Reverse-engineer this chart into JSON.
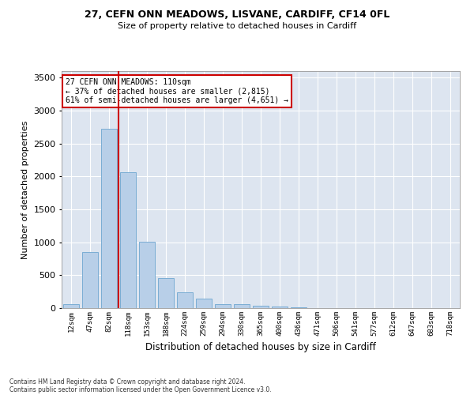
{
  "title1": "27, CEFN ONN MEADOWS, LISVANE, CARDIFF, CF14 0FL",
  "title2": "Size of property relative to detached houses in Cardiff",
  "xlabel": "Distribution of detached houses by size in Cardiff",
  "ylabel": "Number of detached properties",
  "categories": [
    "12sqm",
    "47sqm",
    "82sqm",
    "118sqm",
    "153sqm",
    "188sqm",
    "224sqm",
    "259sqm",
    "294sqm",
    "330sqm",
    "365sqm",
    "400sqm",
    "436sqm",
    "471sqm",
    "506sqm",
    "541sqm",
    "577sqm",
    "612sqm",
    "647sqm",
    "683sqm",
    "718sqm"
  ],
  "values": [
    60,
    850,
    2720,
    2060,
    1005,
    460,
    235,
    140,
    65,
    55,
    35,
    25,
    10,
    0,
    0,
    0,
    0,
    0,
    0,
    0,
    0
  ],
  "bar_color": "#b8cfe8",
  "bar_edge_color": "#7aadd4",
  "vline_color": "#cc0000",
  "vline_pos": 2.5,
  "ylim": [
    0,
    3600
  ],
  "yticks": [
    0,
    500,
    1000,
    1500,
    2000,
    2500,
    3000,
    3500
  ],
  "annotation_text_line1": "27 CEFN ONN MEADOWS: 110sqm",
  "annotation_text_line2": "← 37% of detached houses are smaller (2,815)",
  "annotation_text_line3": "61% of semi-detached houses are larger (4,651) →",
  "annotation_box_color": "#cc0000",
  "background_color": "#dde5f0",
  "grid_color": "#ffffff",
  "footer1": "Contains HM Land Registry data © Crown copyright and database right 2024.",
  "footer2": "Contains public sector information licensed under the Open Government Licence v3.0."
}
